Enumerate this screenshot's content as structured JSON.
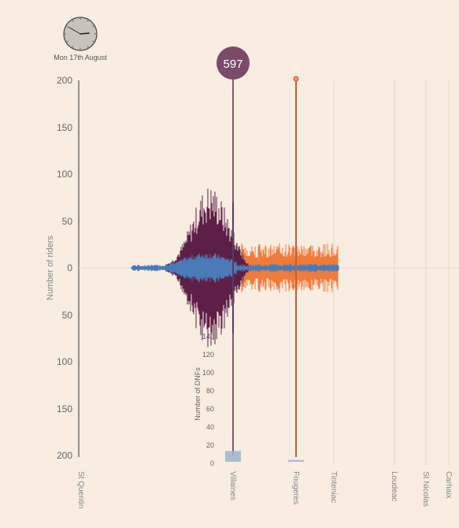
{
  "clock": {
    "date_label": "Mon 17th August",
    "hour": 2,
    "minute": 50
  },
  "counter": {
    "value": "597",
    "color": "#7a4a68"
  },
  "chart_data": {
    "type": "violin-timeline",
    "ylabel": "Number of riders",
    "dnf_label": "Number of DNFs",
    "y_ticks_top": [
      "200",
      "150",
      "100",
      "50",
      "0"
    ],
    "y_ticks_bottom": [
      "50",
      "100",
      "150",
      "200"
    ],
    "dnf_ticks": [
      "140",
      "120",
      "100",
      "80",
      "60",
      "40",
      "20",
      "0"
    ],
    "ylim": [
      -200,
      200
    ],
    "towns": [
      "St Quentin",
      "Villaines",
      "Fougeres",
      "Tinteniac",
      "Loudeac",
      "St Nicolas",
      "Carhaix"
    ],
    "colors": {
      "purple": "#5e1f47",
      "blue": "#4a7ab7",
      "orange": "#f07b3a",
      "marker": "#d9573a",
      "dnf": "#9fb4cc"
    },
    "dnf_values": [
      12,
      2
    ]
  }
}
